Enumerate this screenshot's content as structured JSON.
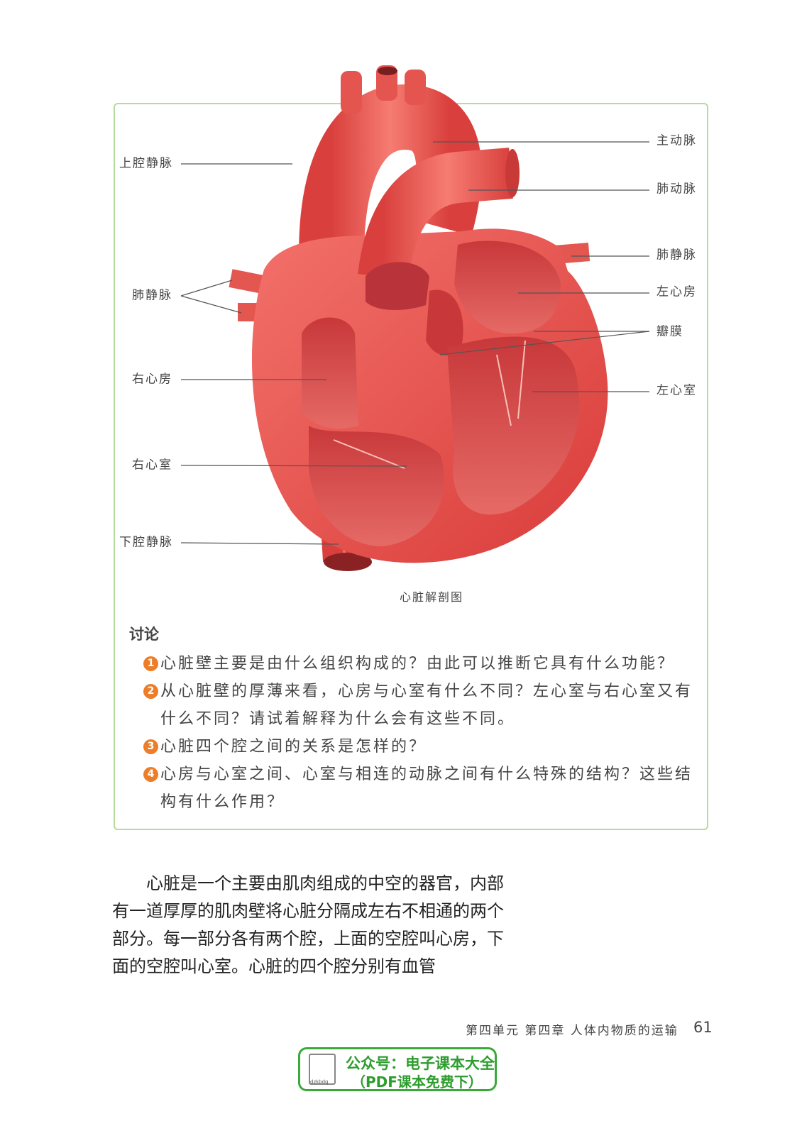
{
  "figure": {
    "labels_left": [
      "上腔静脉",
      "肺静脉",
      "右心房",
      "右心室",
      "下腔静脉"
    ],
    "labels_right": [
      "主动脉",
      "肺动脉",
      "肺静脉",
      "左心房",
      "瓣膜",
      "左心室"
    ],
    "caption": "心脏解剖图"
  },
  "discussion": {
    "title": "讨论",
    "items": [
      {
        "number": 1,
        "text": "心脏壁主要是由什么组织构成的？由此可以推断它具有什么功能？"
      },
      {
        "number": 2,
        "text": "从心脏壁的厚薄来看，心房与心室有什么不同？左心室与右心室又有什么不同？请试着解释为什么会有这些不同。"
      },
      {
        "number": 3,
        "text": "心脏四个腔之间的关系是怎样的？"
      },
      {
        "number": 4,
        "text": "心房与心室之间、心室与相连的动脉之间有什么特殊的结构？这些结构有什么作用？"
      }
    ]
  },
  "body": {
    "paragraph": "心脏是一个主要由肌肉组成的中空的器官，内部有一道厚厚的肌肉壁将心脏分隔成左右不相通的两个部分。每一部分各有两个腔，上面的空腔叫心房，下面的空腔叫心室。心脏的四个腔分别有血管"
  },
  "footer": {
    "chapter": "第四单元 第四章 人体内物质的运输",
    "page": 61
  },
  "badge": {
    "line1": "公众号：电子课本大全",
    "line2": "（PDF课本免费下）",
    "logo": "dzkbdq"
  }
}
